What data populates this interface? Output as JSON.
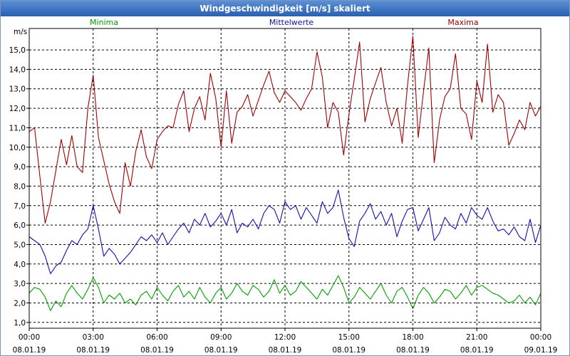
{
  "window": {
    "title": "Windgeschwindigkeit [m/s] skaliert"
  },
  "chart_data": {
    "type": "line",
    "title": "Windgeschwindigkeit [m/s] skaliert",
    "ylabel": "m/s",
    "xlabel": "",
    "ylim": [
      0.7,
      16.1
    ],
    "xlim": [
      0,
      24
    ],
    "y_ticks": [
      "1,0",
      "2,0",
      "3,0",
      "4,0",
      "5,0",
      "6,0",
      "7,0",
      "8,0",
      "9,0",
      "10,0",
      "11,0",
      "12,0",
      "13,0",
      "14,0",
      "15,0"
    ],
    "x_ticks": [
      {
        "time": "00:00",
        "date": "08.01.19"
      },
      {
        "time": "03:00",
        "date": "08.01.19"
      },
      {
        "time": "06:00",
        "date": "08.01.19"
      },
      {
        "time": "09:00",
        "date": "08.01.19"
      },
      {
        "time": "12:00",
        "date": "08.01.19"
      },
      {
        "time": "15:00",
        "date": "08.01.19"
      },
      {
        "time": "18:00",
        "date": "08.01.19"
      },
      {
        "time": "21:00",
        "date": "08.01.19"
      },
      {
        "time": "00:00",
        "date": "09.01.19"
      }
    ],
    "grid": true,
    "series": [
      {
        "name": "Minima",
        "color": "#00a000",
        "x": [
          0,
          0.25,
          0.5,
          0.75,
          1,
          1.25,
          1.5,
          1.75,
          2,
          2.25,
          2.5,
          2.75,
          3,
          3.25,
          3.5,
          3.75,
          4,
          4.25,
          4.5,
          4.75,
          5,
          5.25,
          5.5,
          5.75,
          6,
          6.25,
          6.5,
          6.75,
          7,
          7.25,
          7.5,
          7.75,
          8,
          8.25,
          8.5,
          8.75,
          9,
          9.25,
          9.5,
          9.75,
          10,
          10.25,
          10.5,
          10.75,
          11,
          11.25,
          11.5,
          11.75,
          12,
          12.25,
          12.5,
          12.75,
          13,
          13.25,
          13.5,
          13.75,
          14,
          14.25,
          14.5,
          14.75,
          15,
          15.25,
          15.5,
          15.75,
          16,
          16.25,
          16.5,
          16.75,
          17,
          17.25,
          17.5,
          17.75,
          18,
          18.25,
          18.5,
          18.75,
          19,
          19.25,
          19.5,
          19.75,
          20,
          20.25,
          20.5,
          20.75,
          21,
          21.25,
          21.5,
          21.75,
          22,
          22.25,
          22.5,
          22.75,
          23,
          23.25,
          23.5,
          23.75,
          24
        ],
        "values": [
          2.5,
          2.8,
          2.7,
          2.3,
          1.6,
          2.1,
          1.8,
          2.5,
          2.9,
          2.5,
          2.2,
          2.7,
          3.3,
          2.8,
          2.0,
          2.4,
          2.2,
          2.5,
          2.0,
          2.2,
          1.9,
          2.4,
          2.6,
          2.2,
          2.8,
          2.4,
          2.1,
          2.6,
          2.9,
          2.3,
          2.6,
          2.2,
          2.8,
          2.3,
          2.0,
          2.5,
          2.8,
          2.2,
          2.5,
          3.0,
          2.6,
          2.4,
          2.9,
          2.7,
          2.3,
          2.6,
          3.2,
          2.5,
          2.9,
          2.4,
          2.6,
          3.1,
          2.8,
          2.5,
          2.2,
          2.7,
          2.4,
          2.9,
          3.4,
          2.8,
          2.0,
          2.3,
          2.8,
          2.5,
          2.2,
          2.6,
          3.0,
          2.4,
          2.0,
          2.6,
          2.8,
          2.3,
          1.7,
          2.4,
          2.8,
          2.5,
          2.0,
          2.3,
          2.7,
          2.6,
          2.2,
          2.5,
          2.9,
          2.4,
          2.8,
          2.9,
          2.7,
          2.5,
          2.4,
          2.2,
          2.0,
          2.1,
          2.4,
          2.0,
          2.3,
          1.9,
          2.5
        ]
      },
      {
        "name": "Mittelwerte",
        "color": "#1010b0",
        "x": [
          0,
          0.25,
          0.5,
          0.75,
          1,
          1.25,
          1.5,
          1.75,
          2,
          2.25,
          2.5,
          2.75,
          3,
          3.25,
          3.5,
          3.75,
          4,
          4.25,
          4.5,
          4.75,
          5,
          5.25,
          5.5,
          5.75,
          6,
          6.25,
          6.5,
          6.75,
          7,
          7.25,
          7.5,
          7.75,
          8,
          8.25,
          8.5,
          8.75,
          9,
          9.25,
          9.5,
          9.75,
          10,
          10.25,
          10.5,
          10.75,
          11,
          11.25,
          11.5,
          11.75,
          12,
          12.25,
          12.5,
          12.75,
          13,
          13.25,
          13.5,
          13.75,
          14,
          14.25,
          14.5,
          14.75,
          15,
          15.25,
          15.5,
          15.75,
          16,
          16.25,
          16.5,
          16.75,
          17,
          17.25,
          17.5,
          17.75,
          18,
          18.25,
          18.5,
          18.75,
          19,
          19.25,
          19.5,
          19.75,
          20,
          20.25,
          20.5,
          20.75,
          21,
          21.25,
          21.5,
          21.75,
          22,
          22.25,
          22.5,
          22.75,
          23,
          23.25,
          23.5,
          23.75,
          24
        ],
        "values": [
          5.4,
          5.2,
          5.0,
          4.4,
          3.5,
          3.9,
          4.1,
          4.7,
          5.2,
          5.0,
          5.5,
          5.8,
          7.0,
          5.8,
          4.4,
          4.8,
          4.5,
          4.0,
          4.3,
          4.6,
          5.0,
          5.4,
          5.2,
          5.5,
          5.1,
          5.6,
          5.0,
          5.4,
          5.8,
          6.1,
          5.6,
          6.3,
          6.0,
          6.6,
          5.9,
          6.2,
          6.6,
          6.0,
          6.8,
          5.6,
          6.1,
          5.9,
          6.3,
          5.8,
          6.6,
          7.0,
          6.8,
          6.1,
          7.2,
          6.8,
          7.0,
          6.3,
          6.9,
          6.5,
          6.1,
          7.2,
          6.6,
          6.9,
          7.8,
          6.4,
          5.3,
          4.9,
          6.2,
          6.6,
          7.1,
          6.3,
          6.7,
          6.0,
          6.6,
          5.4,
          6.2,
          6.8,
          6.9,
          5.7,
          6.3,
          6.9,
          5.2,
          5.6,
          6.4,
          6.0,
          5.8,
          6.6,
          6.1,
          6.9,
          6.5,
          6.3,
          6.9,
          6.2,
          5.7,
          5.8,
          5.5,
          5.9,
          5.4,
          5.2,
          6.3,
          5.1,
          6.0
        ]
      },
      {
        "name": "Maxima",
        "color": "#a00000",
        "x": [
          0,
          0.25,
          0.5,
          0.75,
          1,
          1.25,
          1.5,
          1.75,
          2,
          2.25,
          2.5,
          2.75,
          3,
          3.25,
          3.5,
          3.75,
          4,
          4.25,
          4.5,
          4.75,
          5,
          5.25,
          5.5,
          5.75,
          6,
          6.25,
          6.5,
          6.75,
          7,
          7.25,
          7.5,
          7.75,
          8,
          8.25,
          8.5,
          8.75,
          9,
          9.25,
          9.5,
          9.75,
          10,
          10.25,
          10.5,
          10.75,
          11,
          11.25,
          11.5,
          11.75,
          12,
          12.25,
          12.5,
          12.75,
          13,
          13.25,
          13.5,
          13.75,
          14,
          14.25,
          14.5,
          14.75,
          15,
          15.25,
          15.5,
          15.75,
          16,
          16.25,
          16.5,
          16.75,
          17,
          17.25,
          17.5,
          17.75,
          18,
          18.25,
          18.5,
          18.75,
          19,
          19.25,
          19.5,
          19.75,
          20,
          20.25,
          20.5,
          20.75,
          21,
          21.25,
          21.5,
          21.75,
          22,
          22.25,
          22.5,
          22.75,
          23,
          23.25,
          23.5,
          23.75,
          24
        ],
        "values": [
          10.8,
          11.0,
          8.5,
          6.1,
          7.2,
          8.8,
          10.4,
          9.1,
          10.6,
          9.0,
          8.7,
          12.0,
          13.7,
          10.5,
          9.3,
          8.1,
          7.2,
          6.6,
          9.2,
          8.0,
          9.8,
          10.9,
          9.5,
          8.9,
          10.4,
          10.8,
          11.1,
          11.0,
          12.2,
          12.9,
          10.8,
          12.0,
          12.6,
          11.4,
          13.8,
          12.5,
          10.0,
          12.9,
          10.2,
          11.8,
          12.1,
          12.7,
          11.6,
          12.4,
          13.2,
          13.9,
          12.8,
          12.3,
          12.9,
          12.6,
          12.3,
          11.9,
          12.5,
          13.0,
          14.9,
          13.6,
          11.0,
          12.3,
          11.8,
          9.6,
          11.7,
          13.5,
          15.4,
          11.3,
          12.5,
          13.3,
          14.1,
          12.3,
          11.1,
          12.0,
          10.2,
          13.2,
          15.7,
          10.5,
          12.9,
          15.1,
          9.2,
          11.4,
          12.6,
          13.0,
          14.8,
          12.0,
          11.7,
          10.4,
          13.4,
          12.3,
          15.3,
          11.8,
          12.7,
          12.3,
          10.1,
          10.7,
          11.4,
          10.9,
          12.3,
          11.6,
          12.1
        ]
      }
    ]
  }
}
